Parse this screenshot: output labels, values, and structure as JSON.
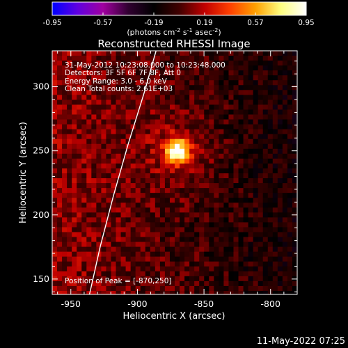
{
  "colorbar": {
    "ticks": [
      "-0.95",
      "-0.57",
      "-0.19",
      "0.19",
      "0.57",
      "0.95"
    ],
    "unit_text": "(photons cm",
    "unit_exp1": "-2",
    "unit_mid": " s",
    "unit_exp2": "-1",
    "unit_mid2": " asec",
    "unit_exp3": "-2",
    "unit_close": ")",
    "colors": [
      "#0000ff",
      "#6000e0",
      "#a000a0",
      "#300030",
      "#000000",
      "#400000",
      "#c00000",
      "#ff4000",
      "#ffa000",
      "#ffff80",
      "#ffffff"
    ]
  },
  "title": "Reconstructed RHESSI Image",
  "info": {
    "line1": "31-May-2012 10:23:08.000 to 10:23:48.000",
    "line2": "Detectors: 3F 5F 6F 7F 8F, Att 0",
    "line3": "Energy Range: 3.0 - 6.0 keV",
    "line4": "Clean     Total counts: 2.61E+03"
  },
  "peak_text": "Position of Peak = [-870,250]",
  "timestamp": "11-May-2022 07:25",
  "chart_data": {
    "type": "heatmap",
    "xlabel": "Heliocentric X (arcsec)",
    "ylabel": "Heliocentric Y (arcsec)",
    "xlim": [
      -964,
      -780
    ],
    "ylim": [
      138,
      328
    ],
    "x_ticks": [
      -950,
      -900,
      -850,
      -800
    ],
    "y_ticks": [
      150,
      200,
      250,
      300
    ],
    "peak": {
      "x": -870,
      "y": 250,
      "value": 0.95
    },
    "value_range": [
      -0.95,
      0.95
    ],
    "limb_curve": [
      {
        "x": -936,
        "y": 138
      },
      {
        "x": -928,
        "y": 175
      },
      {
        "x": -918,
        "y": 215
      },
      {
        "x": -907,
        "y": 255
      },
      {
        "x": -895,
        "y": 295
      },
      {
        "x": -886,
        "y": 328
      }
    ]
  }
}
